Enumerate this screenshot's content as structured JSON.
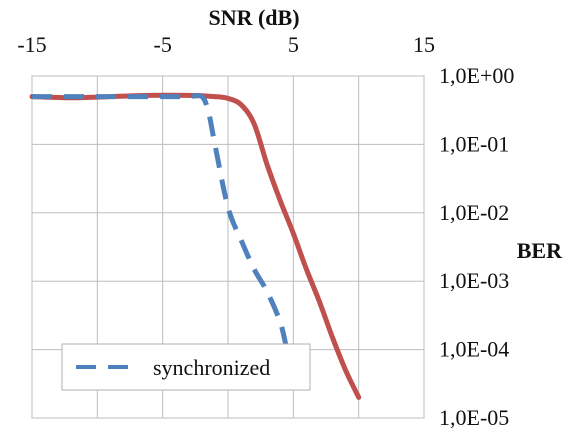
{
  "chart_data": {
    "type": "line",
    "xlabel": "SNR (dB)",
    "ylabel": "BER",
    "x_axis_position": "top",
    "y_axis_position": "right",
    "y_scale": "log",
    "xlim": [
      -15,
      15
    ],
    "ylim": [
      1e-05,
      1
    ],
    "x_tick_labels": [
      {
        "value": -15,
        "label": "-15"
      },
      {
        "value": -5,
        "label": "-5"
      },
      {
        "value": 5,
        "label": "5"
      },
      {
        "value": 15,
        "label": "15"
      }
    ],
    "x_gridlines": [
      -15,
      -10,
      -5,
      0,
      5,
      10,
      15
    ],
    "y_tick_labels": [
      {
        "value": 1,
        "label": "1,0E+00"
      },
      {
        "value": 0.1,
        "label": "1,0E-01"
      },
      {
        "value": 0.01,
        "label": "1,0E-02"
      },
      {
        "value": 0.001,
        "label": "1,0E-03"
      },
      {
        "value": 0.0001,
        "label": "1,0E-04"
      },
      {
        "value": 1e-05,
        "label": "1,0E-05"
      }
    ],
    "grid": true,
    "legend_position": "bottom-left",
    "series": [
      {
        "name": "",
        "color": "#c0504d",
        "dash": "solid",
        "x": [
          -15,
          -12,
          -9,
          -6,
          -3,
          -1,
          0,
          1,
          2,
          3,
          4,
          5,
          6,
          7,
          8,
          9,
          10
        ],
        "y": [
          0.5,
          0.48,
          0.5,
          0.52,
          0.52,
          0.5,
          0.47,
          0.38,
          0.2,
          0.05,
          0.015,
          0.005,
          0.0015,
          0.0005,
          0.00015,
          5e-05,
          2e-05
        ]
      },
      {
        "name": "synchronized",
        "color": "#4f81bd",
        "dash": "dashed",
        "x": [
          -15,
          -10,
          -5,
          -3,
          -2,
          -1.5,
          -1,
          0,
          1,
          2,
          3,
          4,
          4.5
        ],
        "y": [
          0.5,
          0.5,
          0.5,
          0.5,
          0.5,
          0.3,
          0.1,
          0.012,
          0.004,
          0.0015,
          0.0007,
          0.00025,
          0.0001
        ]
      }
    ]
  }
}
